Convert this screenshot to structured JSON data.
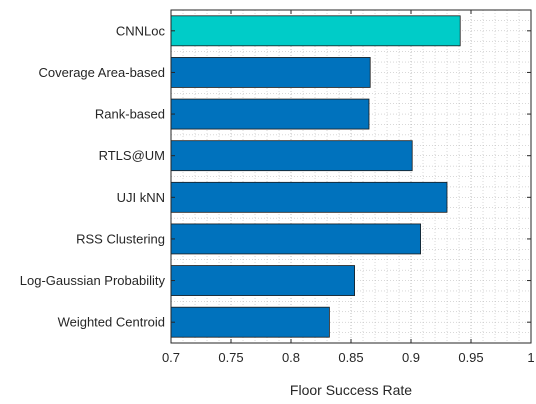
{
  "chart_data": {
    "type": "bar",
    "orientation": "horizontal",
    "categories": [
      "CNNLoc",
      "Coverage Area-based",
      "Rank-based",
      "RTLS@UM",
      "UJI kNN",
      "RSS Clustering",
      "Log-Gaussian Probability",
      "Weighted Centroid"
    ],
    "values": [
      0.941,
      0.866,
      0.865,
      0.901,
      0.93,
      0.908,
      0.853,
      0.832
    ],
    "xlabel": "Floor Success Rate",
    "ylabel": "",
    "xlim": [
      0.7,
      1.0
    ],
    "xticks": [
      "0.7",
      "0.75",
      "0.8",
      "0.85",
      "0.9",
      "0.95",
      "1"
    ],
    "grid": "major and minor dotted",
    "highlight_category": "CNNLoc",
    "colors": {
      "bar": "#0072BD",
      "highlight": "#00CCC8",
      "edge": "#1a1a1a",
      "grid": "#b0b0b0"
    }
  }
}
